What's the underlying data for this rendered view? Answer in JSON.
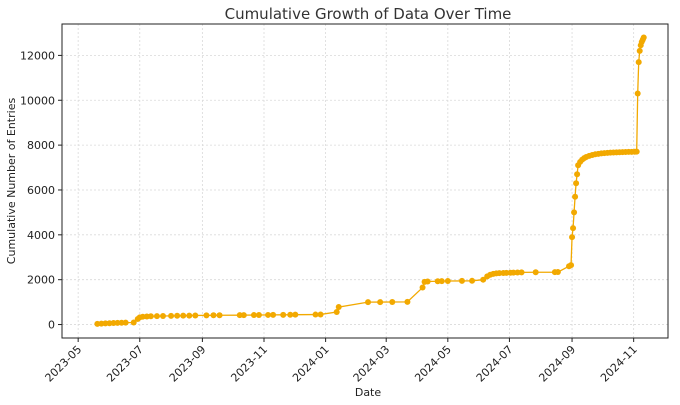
{
  "chart_data": {
    "type": "line",
    "title": "Cumulative Growth of Data Over Time",
    "xlabel": "Date",
    "ylabel": "Cumulative Number of Entries",
    "grid": true,
    "color": "#F2A900",
    "ylim": [
      -600,
      13400
    ],
    "xlim": [
      "2023-04-15",
      "2024-12-05"
    ],
    "y_ticks": [
      0,
      2000,
      4000,
      6000,
      8000,
      10000,
      12000
    ],
    "x_ticks": [
      "2023-05",
      "2023-07",
      "2023-09",
      "2023-11",
      "2024-01",
      "2024-03",
      "2024-05",
      "2024-07",
      "2024-09",
      "2024-11"
    ],
    "series": [
      {
        "points": [
          [
            "2023-05-20",
            30
          ],
          [
            "2023-05-24",
            40
          ],
          [
            "2023-05-28",
            50
          ],
          [
            "2023-06-01",
            60
          ],
          [
            "2023-06-05",
            70
          ],
          [
            "2023-06-09",
            75
          ],
          [
            "2023-06-13",
            80
          ],
          [
            "2023-06-17",
            85
          ],
          [
            "2023-06-25",
            90
          ],
          [
            "2023-06-29",
            250
          ],
          [
            "2023-07-01",
            320
          ],
          [
            "2023-07-04",
            350
          ],
          [
            "2023-07-08",
            360
          ],
          [
            "2023-07-12",
            370
          ],
          [
            "2023-07-18",
            375
          ],
          [
            "2023-07-24",
            380
          ],
          [
            "2023-08-01",
            385
          ],
          [
            "2023-08-07",
            390
          ],
          [
            "2023-08-13",
            395
          ],
          [
            "2023-08-19",
            400
          ],
          [
            "2023-08-25",
            405
          ],
          [
            "2023-09-05",
            410
          ],
          [
            "2023-09-12",
            412
          ],
          [
            "2023-09-18",
            415
          ],
          [
            "2023-10-08",
            418
          ],
          [
            "2023-10-12",
            420
          ],
          [
            "2023-10-22",
            423
          ],
          [
            "2023-10-27",
            425
          ],
          [
            "2023-11-05",
            428
          ],
          [
            "2023-11-10",
            430
          ],
          [
            "2023-11-20",
            433
          ],
          [
            "2023-11-27",
            436
          ],
          [
            "2023-12-02",
            440
          ],
          [
            "2023-12-22",
            445
          ],
          [
            "2023-12-27",
            450
          ],
          [
            "2024-01-12",
            560
          ],
          [
            "2024-01-14",
            780
          ],
          [
            "2024-02-12",
            1000
          ],
          [
            "2024-02-24",
            1002
          ],
          [
            "2024-03-07",
            1005
          ],
          [
            "2024-03-22",
            1010
          ],
          [
            "2024-04-06",
            1650
          ],
          [
            "2024-04-08",
            1900
          ],
          [
            "2024-04-11",
            1920
          ],
          [
            "2024-04-21",
            1930
          ],
          [
            "2024-04-25",
            1935
          ],
          [
            "2024-05-01",
            1940
          ],
          [
            "2024-05-15",
            1945
          ],
          [
            "2024-05-25",
            1950
          ],
          [
            "2024-06-05",
            2000
          ],
          [
            "2024-06-09",
            2150
          ],
          [
            "2024-06-12",
            2220
          ],
          [
            "2024-06-15",
            2260
          ],
          [
            "2024-06-18",
            2280
          ],
          [
            "2024-06-21",
            2290
          ],
          [
            "2024-06-25",
            2300
          ],
          [
            "2024-06-28",
            2305
          ],
          [
            "2024-07-02",
            2310
          ],
          [
            "2024-07-05",
            2315
          ],
          [
            "2024-07-09",
            2320
          ],
          [
            "2024-07-13",
            2325
          ],
          [
            "2024-07-27",
            2330
          ],
          [
            "2024-08-15",
            2335
          ],
          [
            "2024-08-18",
            2340
          ],
          [
            "2024-08-29",
            2600
          ],
          [
            "2024-08-31",
            2650
          ],
          [
            "2024-09-01",
            3900
          ],
          [
            "2024-09-02",
            4300
          ],
          [
            "2024-09-03",
            5000
          ],
          [
            "2024-09-04",
            5700
          ],
          [
            "2024-09-05",
            6300
          ],
          [
            "2024-09-06",
            6700
          ],
          [
            "2024-09-07",
            7100
          ],
          [
            "2024-09-09",
            7250
          ],
          [
            "2024-09-11",
            7350
          ],
          [
            "2024-09-13",
            7420
          ],
          [
            "2024-09-15",
            7470
          ],
          [
            "2024-09-18",
            7520
          ],
          [
            "2024-09-21",
            7560
          ],
          [
            "2024-09-24",
            7590
          ],
          [
            "2024-09-27",
            7610
          ],
          [
            "2024-09-30",
            7630
          ],
          [
            "2024-10-03",
            7645
          ],
          [
            "2024-10-06",
            7655
          ],
          [
            "2024-10-09",
            7665
          ],
          [
            "2024-10-12",
            7672
          ],
          [
            "2024-10-15",
            7678
          ],
          [
            "2024-10-18",
            7683
          ],
          [
            "2024-10-21",
            7688
          ],
          [
            "2024-10-24",
            7692
          ],
          [
            "2024-10-27",
            7696
          ],
          [
            "2024-10-30",
            7700
          ],
          [
            "2024-11-02",
            7705
          ],
          [
            "2024-11-04",
            7710
          ],
          [
            "2024-11-05",
            10300
          ],
          [
            "2024-11-06",
            11700
          ],
          [
            "2024-11-07",
            12200
          ],
          [
            "2024-11-08",
            12450
          ],
          [
            "2024-11-09",
            12600
          ],
          [
            "2024-11-10",
            12700
          ],
          [
            "2024-11-11",
            12800
          ]
        ]
      }
    ]
  }
}
